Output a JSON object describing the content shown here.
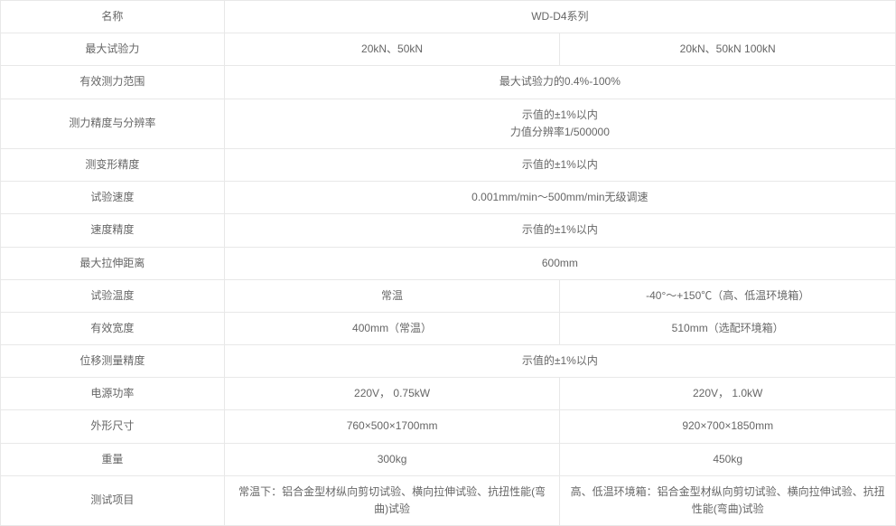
{
  "table": {
    "rows": [
      {
        "label": "名称",
        "type": "single",
        "value": "WD-D4系列"
      },
      {
        "label": "最大试验力",
        "type": "double",
        "value1": "20kN、50kN",
        "value2": "20kN、50kN 100kN"
      },
      {
        "label": "有效测力范围",
        "type": "single",
        "value": "最大试验力的0.4%-100%"
      },
      {
        "label": "测力精度与分辨率",
        "type": "single-multiline",
        "line1": "示值的±1%以内",
        "line2": "力值分辨率1/500000"
      },
      {
        "label": "测变形精度",
        "type": "single",
        "value": "示值的±1%以内"
      },
      {
        "label": "试验速度",
        "type": "single",
        "value": "0.001mm/min～500mm/min无级调速"
      },
      {
        "label": "速度精度",
        "type": "single",
        "value": "示值的±1%以内"
      },
      {
        "label": "最大拉伸距离",
        "type": "single",
        "value": "600mm"
      },
      {
        "label": "试验温度",
        "type": "double",
        "value1": "常温",
        "value2": "-40°～+150℃（高、低温环境箱）"
      },
      {
        "label": "有效宽度",
        "type": "double",
        "value1": "400mm（常温）",
        "value2": "510mm（选配环境箱）"
      },
      {
        "label": "位移测量精度",
        "type": "single",
        "value": "示值的±1%以内"
      },
      {
        "label": "电源功率",
        "type": "double",
        "value1": "220V， 0.75kW",
        "value2": "220V， 1.0kW"
      },
      {
        "label": "外形尺寸",
        "type": "double",
        "value1": "760×500×1700mm",
        "value2": "920×700×1850mm"
      },
      {
        "label": "重量",
        "type": "double",
        "value1": "300kg",
        "value2": "450kg"
      },
      {
        "label": "测试项目",
        "type": "double",
        "value1": "常温下：铝合金型材纵向剪切试验、横向拉伸试验、抗扭性能(弯曲)试验",
        "value2": "高、低温环境箱：铝合金型材纵向剪切试验、横向拉伸试验、抗扭性能(弯曲)试验"
      }
    ],
    "styling": {
      "border_color": "#e8e8e8",
      "text_color": "#666666",
      "font_size": 12,
      "background_color": "#ffffff",
      "label_col_width_pct": 25,
      "value_col_width_pct": 37.5
    }
  }
}
